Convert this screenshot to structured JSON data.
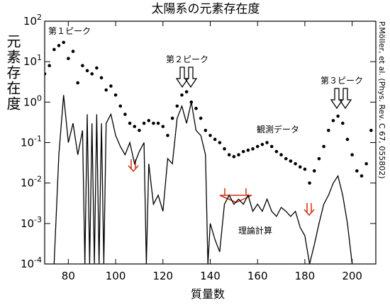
{
  "chart_data": {
    "type": "scatter-line",
    "title": "太陽系の元素存在度",
    "x_label": "質量数",
    "y_label": "元素存在度",
    "annotations": [
      "第１ピーク",
      "第２ピーク",
      "第３ピーク",
      "観測データ",
      "理論計算",
      "P.Möller, et al. (Phys. Rev. C 67, 055802)"
    ],
    "log_y": true,
    "xlim": [
      70,
      210
    ],
    "ylim": [
      0.0001,
      100
    ],
    "xticks": [
      80,
      100,
      120,
      140,
      160,
      180,
      200
    ],
    "yticks": [
      {
        "value": 0.0001,
        "label": "10",
        "exponent": "-4"
      },
      {
        "value": 0.001,
        "label": "10",
        "exponent": "-3"
      },
      {
        "value": 0.01,
        "label": "10",
        "exponent": "-2"
      },
      {
        "value": 0.1,
        "label": "10",
        "exponent": "-1"
      },
      {
        "value": 1,
        "label": "10",
        "exponent": "0"
      },
      {
        "value": 10,
        "label": "10",
        "exponent": "1"
      },
      {
        "value": 100,
        "label": "10",
        "exponent": "2"
      }
    ],
    "series": [
      {
        "name": "観測データ",
        "kind": "points",
        "color": "#000000",
        "x": [
          70,
          72,
          74,
          76,
          78,
          80,
          82,
          84,
          86,
          88,
          90,
          92,
          94,
          96,
          98,
          100,
          102,
          104,
          106,
          108,
          110,
          112,
          114,
          116,
          118,
          120,
          122,
          124,
          126,
          128,
          130,
          132,
          134,
          136,
          138,
          140,
          142,
          144,
          146,
          148,
          150,
          152,
          154,
          156,
          158,
          160,
          162,
          164,
          166,
          168,
          170,
          172,
          174,
          176,
          178,
          180,
          182,
          184,
          186,
          188,
          190,
          192,
          194,
          196,
          198,
          200,
          202,
          204,
          206,
          208
        ],
        "values": [
          5,
          8,
          20,
          25,
          30,
          12,
          18,
          3,
          8,
          6,
          5,
          7,
          4,
          2,
          2.5,
          1.5,
          0.8,
          0.5,
          0.3,
          0.25,
          0.2,
          0.3,
          0.35,
          0.3,
          0.3,
          0.25,
          0.15,
          0.4,
          0.8,
          1.5,
          1.8,
          1.0,
          0.7,
          0.4,
          0.2,
          0.15,
          0.12,
          0.1,
          0.07,
          0.05,
          0.045,
          0.05,
          0.06,
          0.065,
          0.07,
          0.08,
          0.09,
          0.1,
          0.08,
          0.06,
          0.05,
          0.04,
          0.035,
          0.03,
          0.025,
          0.022,
          0.01,
          0.02,
          0.04,
          0.08,
          0.2,
          0.35,
          0.45,
          0.3,
          0.12,
          0.05,
          0.02,
          0.015,
          0.03,
          0.2
        ]
      },
      {
        "name": "理論計算",
        "kind": "line",
        "color": "#000000",
        "x": [
          74,
          76,
          78,
          80,
          82,
          84,
          86,
          87,
          88,
          89,
          90,
          91,
          92,
          93,
          94,
          95,
          96,
          98,
          100,
          102,
          104,
          106,
          108,
          110,
          112,
          113,
          114,
          116,
          118,
          120,
          122,
          124,
          126,
          128,
          130,
          132,
          134,
          136,
          138,
          139,
          140,
          142,
          144,
          146,
          148,
          150,
          152,
          154,
          156,
          158,
          160,
          162,
          164,
          166,
          168,
          170,
          172,
          174,
          176,
          178,
          180,
          182,
          184,
          186,
          188,
          190,
          192,
          194,
          196,
          198,
          200
        ],
        "values": [
          0.0001,
          0.05,
          1.5,
          0.1,
          0.3,
          0.05,
          0.2,
          0.0001,
          0.5,
          0.0001,
          0.3,
          0.0001,
          0.5,
          0.0001,
          0.3,
          0.0001,
          0.3,
          0.5,
          0.15,
          0.08,
          0.05,
          0.1,
          0.03,
          0.06,
          0.1,
          0.0001,
          0.03,
          0.003,
          0.005,
          0.002,
          0.04,
          0.03,
          0.4,
          0.8,
          0.3,
          1.0,
          0.2,
          0.15,
          0.05,
          0.0001,
          0.001,
          0.0004,
          0.0002,
          0.003,
          0.005,
          0.003,
          0.004,
          0.003,
          0.005,
          0.002,
          0.003,
          0.002,
          0.004,
          0.002,
          0.0015,
          0.0025,
          0.002,
          0.0015,
          0.002,
          0.0008,
          0.0005,
          0.0001,
          0.0003,
          0.001,
          0.003,
          0.005,
          0.01,
          0.015,
          0.005,
          0.001,
          0.0001
        ]
      }
    ]
  }
}
